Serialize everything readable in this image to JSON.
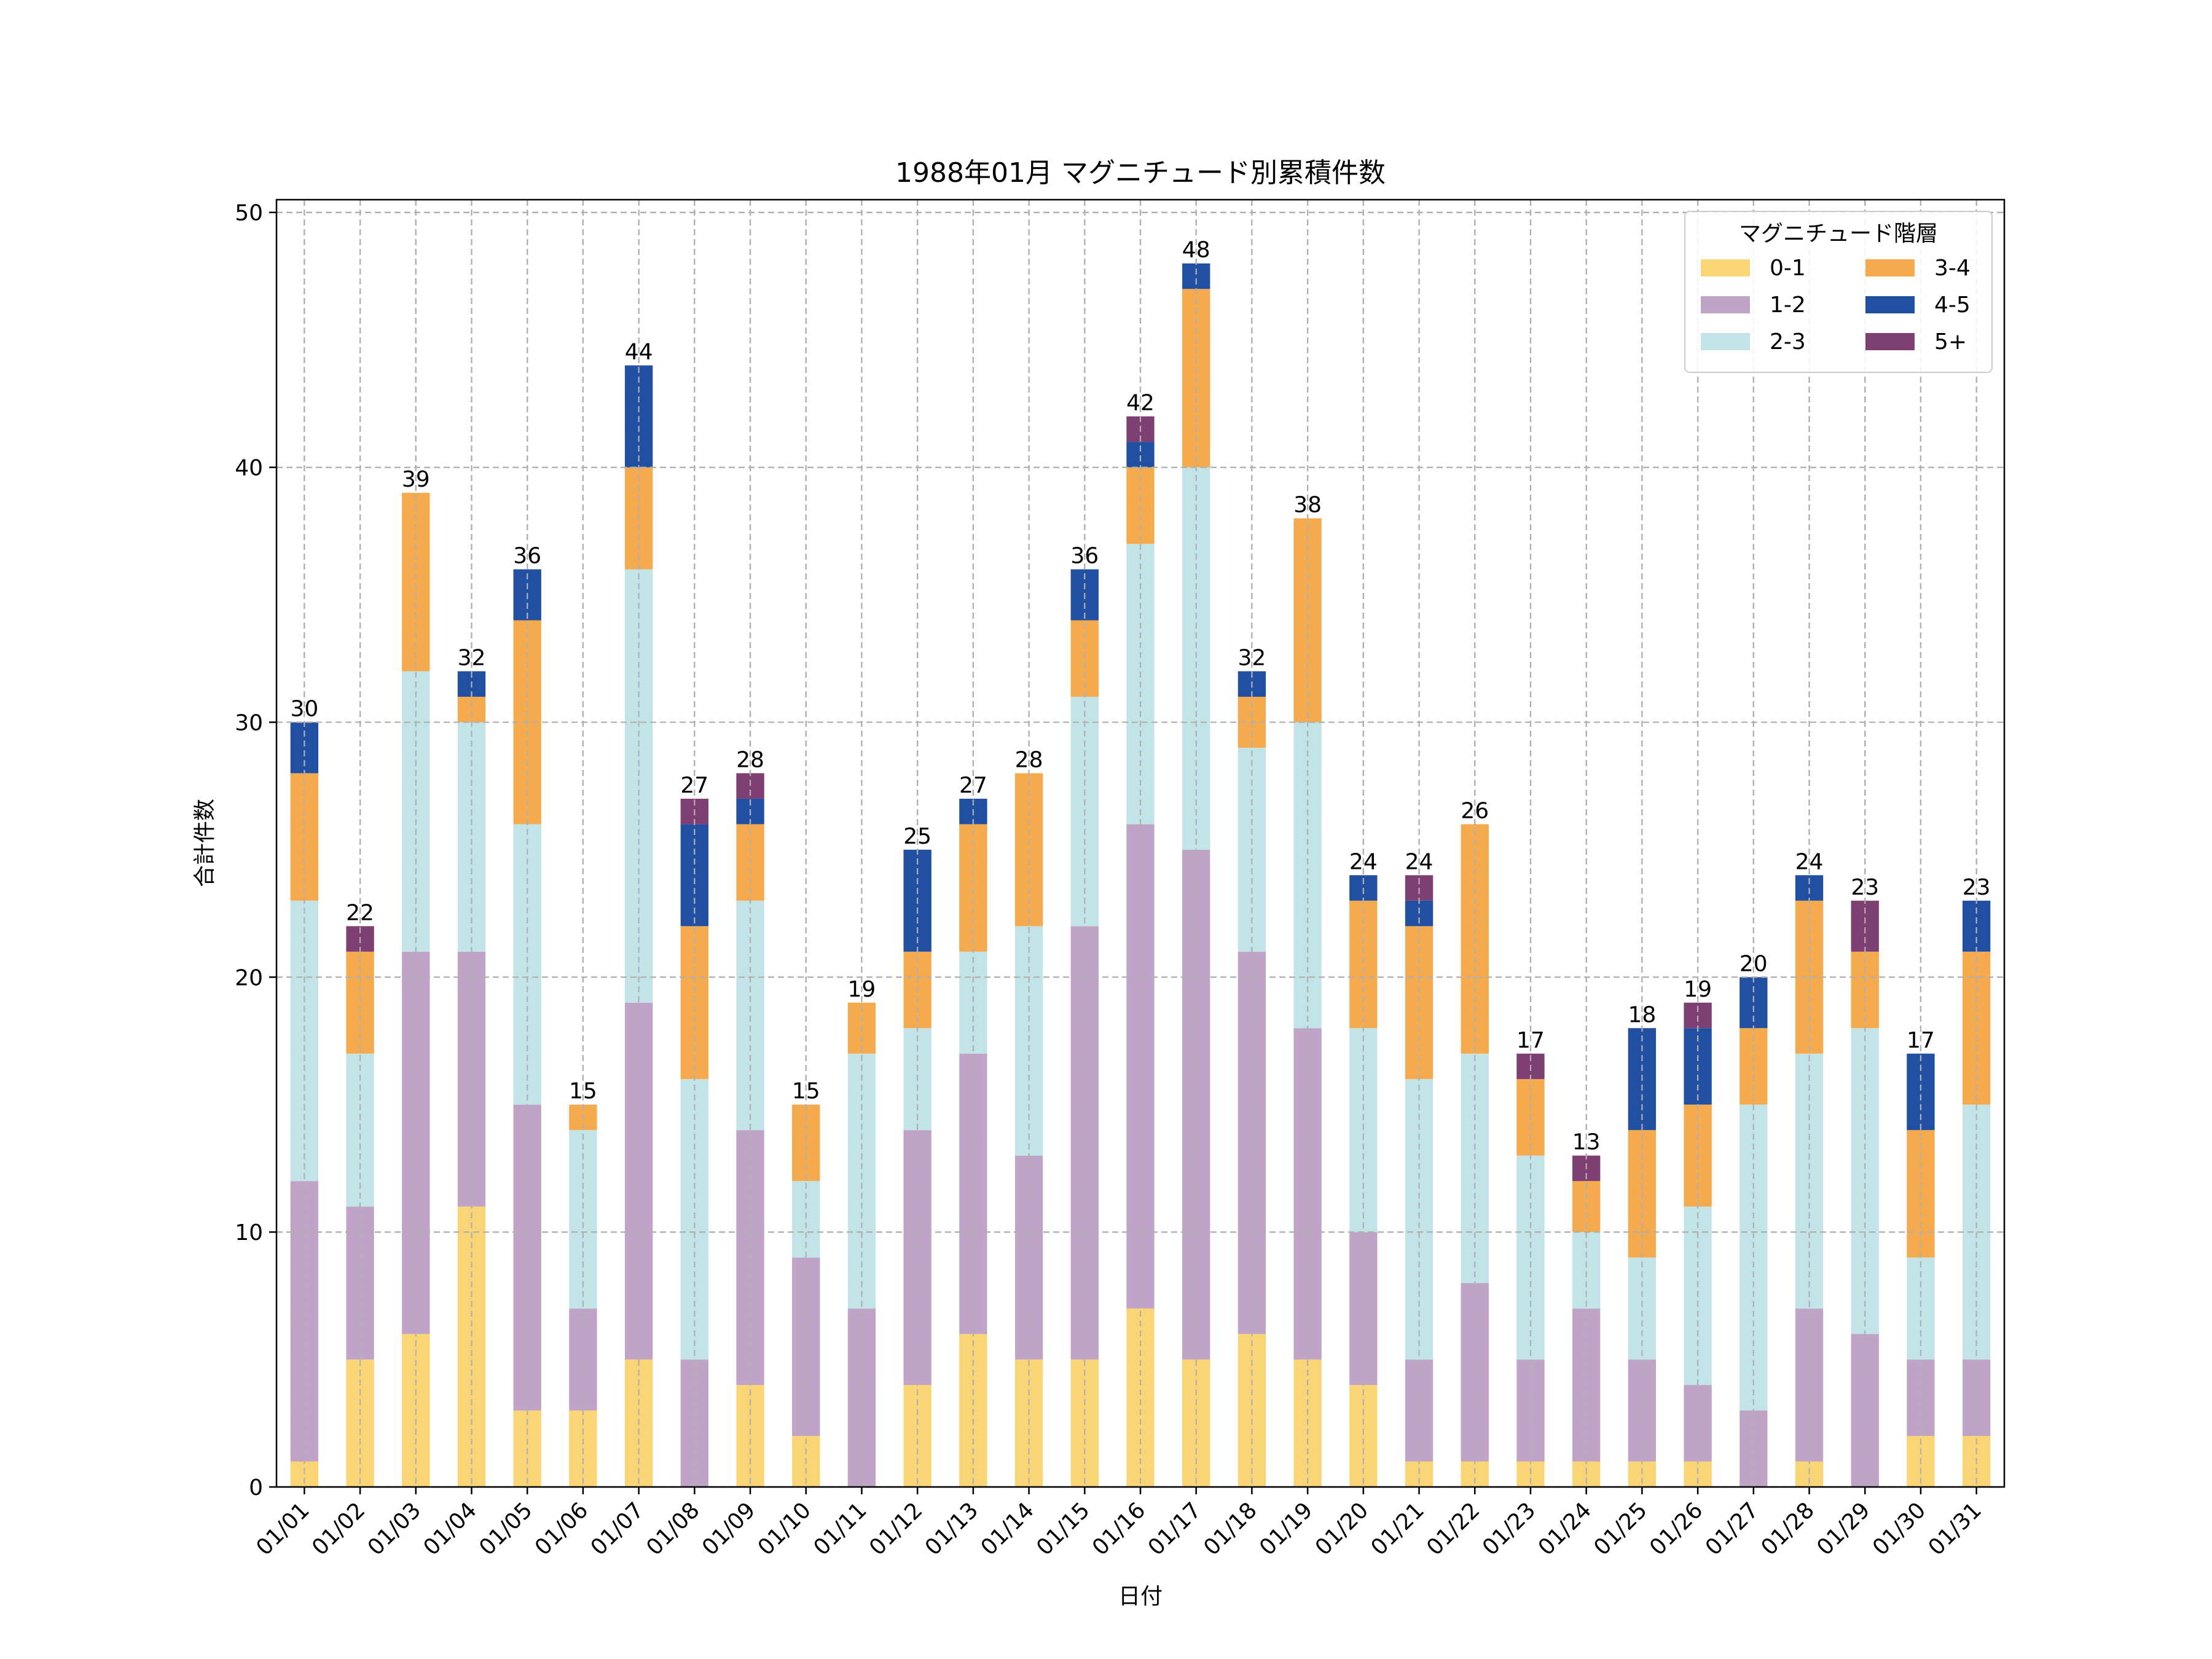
{
  "chart_data": {
    "type": "bar",
    "stacked": true,
    "title": "1988年01月 マグニチュード別累積件数",
    "xlabel": "日付",
    "ylabel": "合計件数",
    "ylim": [
      0,
      50.5
    ],
    "yticks": [
      0,
      10,
      20,
      30,
      40,
      50
    ],
    "grid": true,
    "legend": {
      "title": "マグニチュード階層",
      "position": "top-right",
      "columns": 2
    },
    "categories": [
      "01/01",
      "01/02",
      "01/03",
      "01/04",
      "01/05",
      "01/06",
      "01/07",
      "01/08",
      "01/09",
      "01/10",
      "01/11",
      "01/12",
      "01/13",
      "01/14",
      "01/15",
      "01/16",
      "01/17",
      "01/18",
      "01/19",
      "01/20",
      "01/21",
      "01/22",
      "01/23",
      "01/24",
      "01/25",
      "01/26",
      "01/27",
      "01/28",
      "01/29",
      "01/30",
      "01/31"
    ],
    "series": [
      {
        "name": "0-1",
        "color": "#FAD576",
        "values": [
          1,
          5,
          6,
          11,
          3,
          3,
          5,
          0,
          4,
          2,
          0,
          4,
          6,
          5,
          5,
          7,
          5,
          6,
          5,
          4,
          1,
          1,
          1,
          1,
          1,
          1,
          0,
          1,
          0,
          2,
          2
        ]
      },
      {
        "name": "1-2",
        "color": "#C0A4C8",
        "values": [
          11,
          6,
          15,
          10,
          12,
          4,
          14,
          5,
          10,
          7,
          7,
          10,
          11,
          8,
          17,
          19,
          20,
          15,
          13,
          6,
          4,
          7,
          4,
          6,
          4,
          3,
          3,
          6,
          6,
          3,
          3
        ]
      },
      {
        "name": "2-3",
        "color": "#C3E4E6",
        "values": [
          11,
          6,
          11,
          9,
          11,
          7,
          17,
          11,
          9,
          3,
          10,
          4,
          4,
          9,
          9,
          11,
          15,
          8,
          12,
          8,
          11,
          9,
          8,
          3,
          4,
          7,
          12,
          10,
          12,
          4,
          10
        ]
      },
      {
        "name": "3-4",
        "color": "#F4AA4D",
        "values": [
          5,
          4,
          7,
          1,
          8,
          1,
          4,
          6,
          3,
          3,
          2,
          3,
          5,
          6,
          3,
          3,
          7,
          2,
          8,
          5,
          6,
          9,
          3,
          2,
          5,
          4,
          3,
          6,
          3,
          5,
          6
        ]
      },
      {
        "name": "4-5",
        "color": "#2150A2",
        "values": [
          2,
          0,
          0,
          1,
          2,
          0,
          4,
          4,
          1,
          0,
          0,
          4,
          1,
          0,
          2,
          1,
          1,
          1,
          0,
          1,
          1,
          0,
          0,
          0,
          4,
          3,
          2,
          1,
          0,
          3,
          2
        ]
      },
      {
        "name": "5+",
        "color": "#7E3F72",
        "values": [
          0,
          1,
          0,
          0,
          0,
          0,
          0,
          1,
          1,
          0,
          0,
          0,
          0,
          0,
          0,
          1,
          0,
          0,
          0,
          0,
          1,
          0,
          1,
          1,
          0,
          1,
          0,
          0,
          2,
          0,
          0
        ]
      }
    ],
    "totals": [
      30,
      22,
      39,
      32,
      36,
      15,
      44,
      27,
      28,
      15,
      19,
      25,
      27,
      28,
      36,
      42,
      48,
      32,
      38,
      24,
      24,
      26,
      17,
      13,
      18,
      19,
      20,
      24,
      23,
      17,
      23
    ]
  }
}
